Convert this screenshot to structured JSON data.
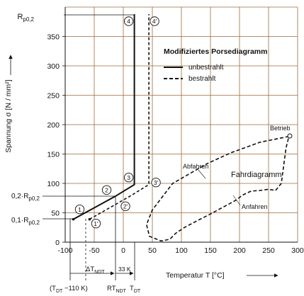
{
  "chart_data": {
    "type": "line",
    "legend": {
      "title": "Modifiziertes Porsediagramm",
      "placement": "top-right",
      "entries": [
        {
          "label": "unbestrahlt",
          "style": "solid"
        },
        {
          "label": "bestrahlt",
          "style": "dashed"
        }
      ]
    },
    "xlabel": "Temperatur  T    [°C]",
    "ylabel": "Spannung  σ  [N / mm²]",
    "xlim": [
      -100,
      300
    ],
    "ylim": [
      0,
      400
    ],
    "grid": true,
    "grid_color": "#9b6a3c",
    "x_ticks": [
      "-100",
      "-50",
      "0",
      "50",
      "100",
      "150",
      "200",
      "250",
      "300"
    ],
    "y_ticks": [
      "0",
      "50",
      "100",
      "150",
      "200",
      "250",
      "300",
      "350"
    ],
    "y_special_ticks": {
      "rp02": {
        "label": "R",
        "sub": "p0,2",
        "value": 388
      },
      "rp02_02": {
        "label": "0,2·R",
        "sub": "p0,2",
        "value": 78
      },
      "rp02_01": {
        "label": "0,1·R",
        "sub": "p0,2",
        "value": 39
      }
    },
    "bottom_annotations": {
      "tdt_minus": {
        "label": "(T",
        "sub": "DT",
        "tail": " −110 K)"
      },
      "delta_tndt": {
        "label": "ΔT",
        "sub": "NDT"
      },
      "k33": "33 K",
      "rtndt": {
        "label": "RT",
        "sub": "NDT"
      },
      "tdt": {
        "label": "T",
        "sub": "DT"
      }
    },
    "series": [
      {
        "name": "unbestrahlt",
        "style": "solid",
        "x": [
          -86,
          -14,
          19,
          19
        ],
        "y": [
          39,
          78,
          98,
          388
        ]
      },
      {
        "name": "bestrahlt",
        "style": "dashed",
        "x": [
          -58,
          11,
          44,
          44
        ],
        "y": [
          39,
          78,
          98,
          388
        ]
      }
    ],
    "fahrdiagramm": {
      "title": "Fahrdiagramm",
      "annotations": {
        "start": "Abfahren",
        "stop": "Anfahren",
        "op": "Betrieb"
      },
      "points": {
        "x": [
          285,
          275,
          235,
          185,
          145,
          85,
          50,
          40,
          45,
          65,
          80,
          90,
          105,
          130,
          150,
          165,
          180,
          195,
          205,
          220,
          235,
          250,
          262,
          272,
          280,
          285
        ],
        "y": [
          180,
          178,
          170,
          152,
          134,
          100,
          55,
          30,
          10,
          2,
          5,
          15,
          25,
          38,
          48,
          56,
          64,
          72,
          80,
          87,
          88,
          90,
          88,
          100,
          160,
          180
        ]
      }
    },
    "marked_points": [
      {
        "label": "1",
        "x": -86,
        "y": 39
      },
      {
        "label": "2",
        "x": -14,
        "y": 78
      },
      {
        "label": "3",
        "x": 19,
        "y": 98
      },
      {
        "label": "4",
        "x": 19,
        "y": 388
      },
      {
        "label": "1'",
        "x": -58,
        "y": 39
      },
      {
        "label": "2'",
        "x": 11,
        "y": 78
      },
      {
        "label": "3'",
        "x": 44,
        "y": 98
      },
      {
        "label": "4'",
        "x": 44,
        "y": 388
      }
    ]
  }
}
